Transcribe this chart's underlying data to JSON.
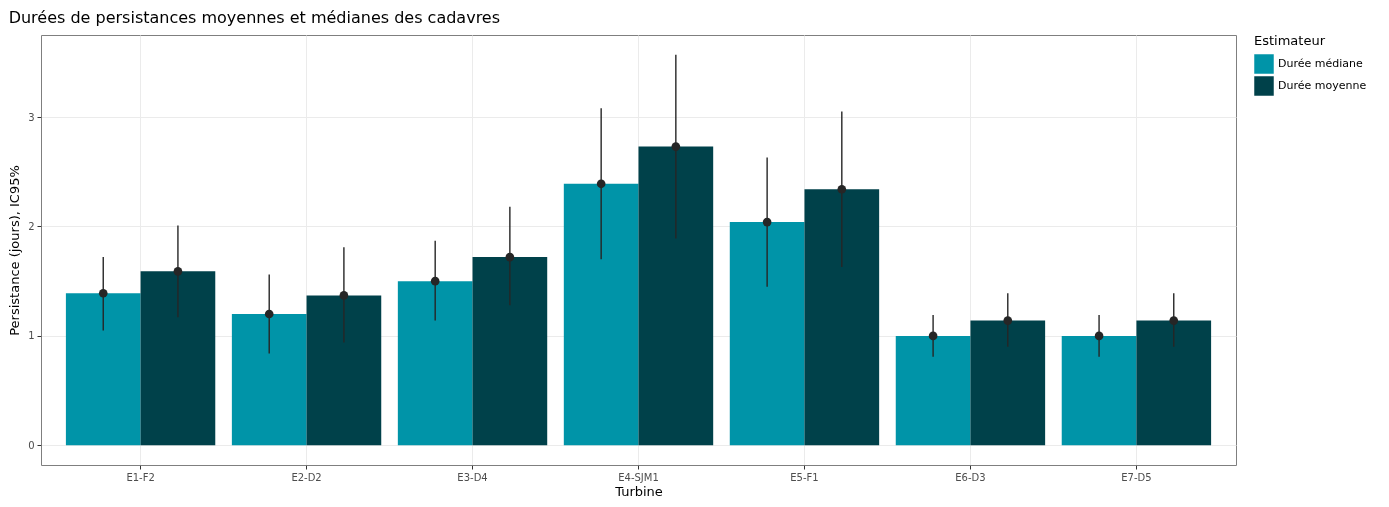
{
  "chart_data": {
    "type": "bar",
    "title": "Durées de persistances moyennes et médianes des cadavres",
    "xlabel": "Turbine",
    "ylabel": "Persistance (jours), IC95%",
    "legend_title": "Estimateur",
    "categories": [
      "E1-F2",
      "E2-D2",
      "E3-D4",
      "E4-SJM1",
      "E5-F1",
      "E6-D3",
      "E7-D5"
    ],
    "series": [
      {
        "name": "Durée médiane",
        "color": "#0094a8",
        "values": [
          1.39,
          1.2,
          1.5,
          2.39,
          2.04,
          1.0,
          1.0
        ]
      },
      {
        "name": "Durée moyenne",
        "color": "#00414a",
        "values": [
          1.59,
          1.37,
          1.72,
          2.73,
          2.34,
          1.14,
          1.14
        ]
      },
      {
        "type": "scatter",
        "color": "#262626",
        "values": [
          1.39,
          1.2,
          1.5,
          2.39,
          2.04,
          1.0,
          1.0
        ],
        "errors": [
          [
            1.05,
            1.72
          ],
          [
            0.84,
            1.56
          ],
          [
            1.14,
            1.87
          ],
          [
            1.7,
            3.08
          ],
          [
            1.45,
            2.63
          ],
          [
            0.81,
            1.19
          ],
          [
            0.81,
            1.19
          ]
        ]
      },
      {
        "type": "scatter",
        "color": "#262626",
        "values": [
          1.59,
          1.37,
          1.72,
          2.73,
          2.34,
          1.14,
          1.14
        ],
        "errors": [
          [
            1.17,
            2.01
          ],
          [
            0.94,
            1.81
          ],
          [
            1.28,
            2.18
          ],
          [
            1.89,
            3.57
          ],
          [
            1.63,
            3.05
          ],
          [
            0.9,
            1.39
          ],
          [
            0.9,
            1.39
          ]
        ]
      }
    ],
    "ylim": [
      -0.18,
      3.75
    ],
    "yticks": [
      0,
      1,
      2,
      3
    ],
    "grid": true,
    "legend": "right",
    "marker": "circle"
  }
}
